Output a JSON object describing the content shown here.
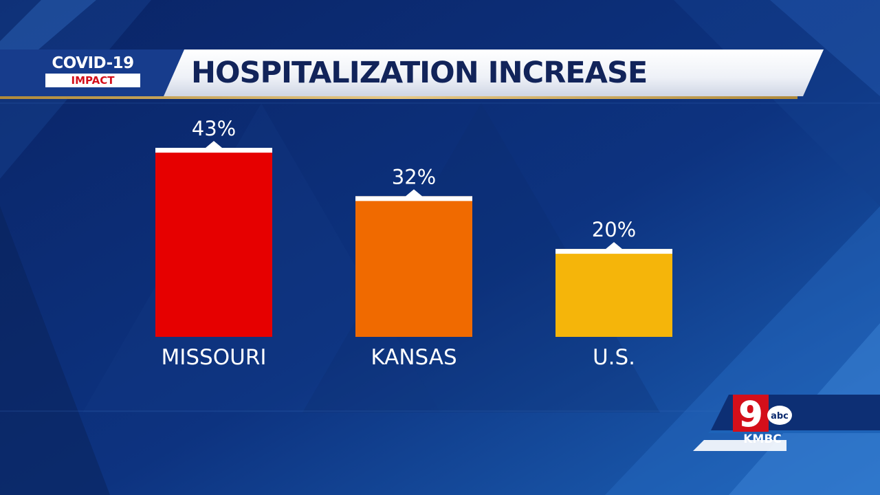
{
  "header": {
    "badge_title": "COVID-19",
    "badge_subtitle": "IMPACT",
    "title": "HOSPITALIZATION INCREASE"
  },
  "station": {
    "channel": "9",
    "network": "abc",
    "call_sign": "KMBC"
  },
  "colors": {
    "background": "#0b2a6e",
    "title_text": "#12245a",
    "badge_red": "#d40f1a",
    "bar_missouri": "#e60000",
    "bar_kansas": "#f06a00",
    "bar_us": "#f5b50a"
  },
  "chart_data": {
    "type": "bar",
    "title": "HOSPITALIZATION INCREASE",
    "categories": [
      "MISSOURI",
      "KANSAS",
      "U.S."
    ],
    "values": [
      43,
      32,
      20
    ],
    "value_labels": [
      "43%",
      "32%",
      "20%"
    ],
    "unit": "%",
    "xlabel": "",
    "ylabel": "",
    "ylim": [
      0,
      43
    ],
    "grid": false,
    "legend": "none"
  }
}
